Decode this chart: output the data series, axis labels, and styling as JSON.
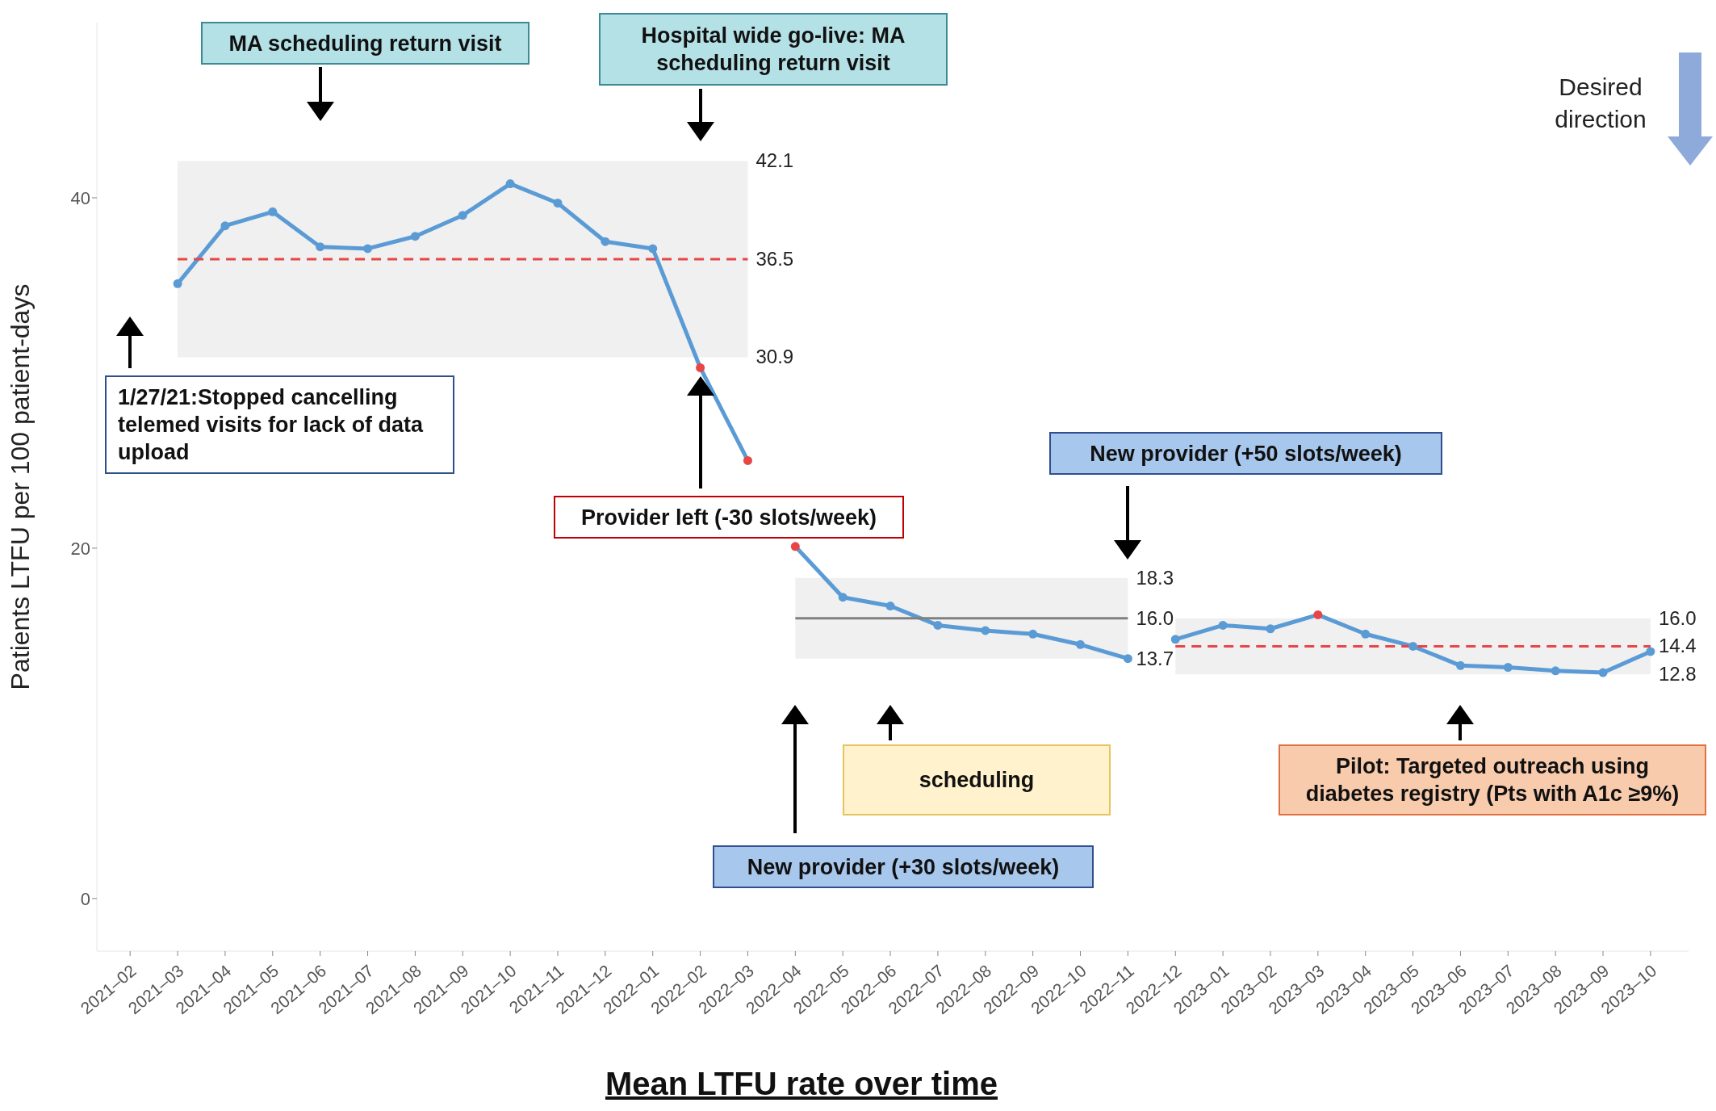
{
  "chart_data": {
    "type": "line",
    "title": "Mean LTFU rate over time",
    "ylabel": "Patients LTFU per 100 patient-days",
    "categories": [
      "2021–02",
      "2021–03",
      "2021–04",
      "2021–05",
      "2021–06",
      "2021–07",
      "2021–08",
      "2021–09",
      "2021–10",
      "2021–11",
      "2021–12",
      "2022–01",
      "2022–02",
      "2022–03",
      "2022–04",
      "2022–05",
      "2022–06",
      "2022–07",
      "2022–08",
      "2022–09",
      "2022–10",
      "2022–11",
      "2022–12",
      "2023–01",
      "2023–02",
      "2023–03",
      "2023–04",
      "2023–05",
      "2023–06",
      "2023–07",
      "2023–08",
      "2023–09",
      "2023–10"
    ],
    "series": [
      {
        "color": "#5b9bd5",
        "x": [
          "2021–03",
          "2021–04",
          "2021–05",
          "2021–06",
          "2021–07",
          "2021–08",
          "2021–09",
          "2021–10",
          "2021–11",
          "2021–12",
          "2022–01",
          "2022–02",
          "2022–03"
        ],
        "values": [
          35.1,
          38.4,
          39.2,
          37.2,
          37.1,
          37.8,
          39.0,
          40.8,
          39.7,
          37.5,
          37.1,
          30.3,
          25.0
        ],
        "colors": [
          "#5b9bd5",
          "#5b9bd5",
          "#5b9bd5",
          "#5b9bd5",
          "#5b9bd5",
          "#5b9bd5",
          "#5b9bd5",
          "#5b9bd5",
          "#5b9bd5",
          "#5b9bd5",
          "#5b9bd5",
          "#e84545",
          "#e84545"
        ]
      },
      {
        "color": "#5b9bd5",
        "x": [
          "2022–04",
          "2022–05",
          "2022–06",
          "2022–07",
          "2022–08",
          "2022–09",
          "2022–10",
          "2022–11"
        ],
        "values": [
          20.1,
          17.2,
          16.7,
          15.6,
          15.3,
          15.1,
          14.5,
          13.7
        ],
        "colors": [
          "#e84545",
          "#5b9bd5",
          "#5b9bd5",
          "#5b9bd5",
          "#5b9bd5",
          "#5b9bd5",
          "#5b9bd5",
          "#5b9bd5"
        ]
      },
      {
        "color": "#5b9bd5",
        "x": [
          "2022–12",
          "2023–01",
          "2023–02",
          "2023–03",
          "2023–04",
          "2023–05",
          "2023–06",
          "2023–07",
          "2023–08",
          "2023–09",
          "2023–10"
        ],
        "values": [
          14.8,
          15.6,
          15.4,
          16.2,
          15.1,
          14.4,
          13.3,
          13.2,
          13.0,
          12.9,
          14.1
        ],
        "colors": [
          "#5b9bd5",
          "#5b9bd5",
          "#5b9bd5",
          "#e84545",
          "#5b9bd5",
          "#5b9bd5",
          "#5b9bd5",
          "#5b9bd5",
          "#5b9bd5",
          "#5b9bd5",
          "#5b9bd5"
        ]
      },
      {
        "color": "#e84545",
        "line_style": "dashed",
        "marker": "none",
        "x": [
          "2021–03",
          "2021–04",
          "2021–05",
          "2021–06",
          "2021–07",
          "2021–08",
          "2021–09",
          "2021–10",
          "2021–11",
          "2021–12",
          "2022–01",
          "2022–02",
          "2022–03"
        ],
        "values": [
          36.5,
          36.5,
          36.5,
          36.5,
          36.5,
          36.5,
          36.5,
          36.5,
          36.5,
          36.5,
          36.5,
          36.5,
          36.5
        ],
        "lower": [
          30.9,
          30.9,
          30.9,
          30.9,
          30.9,
          30.9,
          30.9,
          30.9,
          30.9,
          30.9,
          30.9,
          30.9,
          30.9
        ],
        "upper": [
          42.1,
          42.1,
          42.1,
          42.1,
          42.1,
          42.1,
          42.1,
          42.1,
          42.1,
          42.1,
          42.1,
          42.1,
          42.1
        ]
      },
      {
        "color": "#808080",
        "line_style": "solid",
        "marker": "none",
        "x": [
          "2022–04",
          "2022–05",
          "2022–06",
          "2022–07",
          "2022–08",
          "2022–09",
          "2022–10",
          "2022–11"
        ],
        "values": [
          16.0,
          16.0,
          16.0,
          16.0,
          16.0,
          16.0,
          16.0,
          16.0
        ],
        "lower": [
          13.7,
          13.7,
          13.7,
          13.7,
          13.7,
          13.7,
          13.7,
          13.7
        ],
        "upper": [
          18.3,
          18.3,
          18.3,
          18.3,
          18.3,
          18.3,
          18.3,
          18.3
        ]
      },
      {
        "color": "#e84545",
        "line_style": "dashed",
        "marker": "none",
        "x": [
          "2022–12",
          "2023–01",
          "2023–02",
          "2023–03",
          "2023–04",
          "2023–05",
          "2023–06",
          "2023–07",
          "2023–08",
          "2023–09",
          "2023–10"
        ],
        "values": [
          14.4,
          14.4,
          14.4,
          14.4,
          14.4,
          14.4,
          14.4,
          14.4,
          14.4,
          14.4,
          14.4
        ],
        "lower": [
          12.8,
          12.8,
          12.8,
          12.8,
          12.8,
          12.8,
          12.8,
          12.8,
          12.8,
          12.8,
          12.8
        ],
        "upper": [
          16.0,
          16.0,
          16.0,
          16.0,
          16.0,
          16.0,
          16.0,
          16.0,
          16.0,
          16.0,
          16.0
        ]
      }
    ],
    "ylim": [
      -3,
      50
    ],
    "yticks": [
      0,
      20,
      40
    ],
    "marker": "circle",
    "line_style": "solid",
    "annotations": [
      "MA scheduling return visit",
      "Hospital wide go-live: MA scheduling return visit",
      "1/27/21:Stopped cancelling telemed visits for lack of data upload",
      "Provider left (-30 slots/week)",
      "New provider (+50 slots/week)",
      "New provider (+30 slots/week)",
      "scheduling",
      "Pilot: Targeted outreach using diabetes registry (Pts with A1c ≥9%)",
      "Desired direction",
      {
        "text": "42.1",
        "x": "2022–03",
        "y": 42.1
      },
      {
        "text": "36.5",
        "x": "2022–03",
        "y": 36.5
      },
      {
        "text": "30.9",
        "x": "2022–03",
        "y": 30.9
      },
      {
        "text": "18.3",
        "x": "2022–11",
        "y": 18.3
      },
      {
        "text": "16.0",
        "x": "2022–11",
        "y": 16.0
      },
      {
        "text": "13.7",
        "x": "2022–11",
        "y": 13.7
      },
      {
        "text": "16.0",
        "x": "2023–10",
        "y": 16.0
      },
      {
        "text": "14.4",
        "x": "2023–10",
        "y": 14.4
      },
      {
        "text": "12.8",
        "x": "2023–10",
        "y": 12.8
      }
    ]
  }
}
